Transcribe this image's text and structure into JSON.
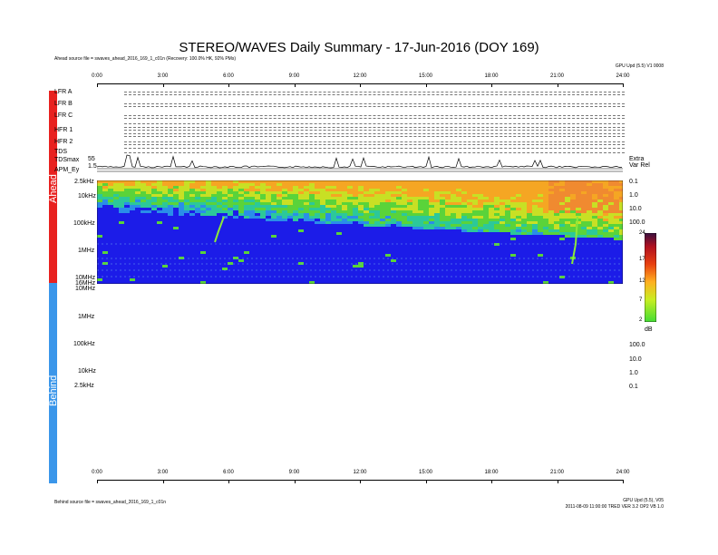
{
  "title": "STEREO/WAVES Daily Summary - 17-Jun-2016 (DOY 169)",
  "ahead_source": "Ahead source file = swaves_ahead_2016_169_1_c01n (Recovery: 100.0% HK, 92% PMs)",
  "behind_source": "Behind source file = swaves_ahead_2016_169_1_c01n",
  "top_right_note": "GPU Upd (5.5) V1 0008",
  "bottom_right_note": "GPU Upd (5.5), V05",
  "bottom_right_note2": "2011-08-09 11:00:00 TRED VER 3.2 OP2 VB 1.0",
  "ahead_label": "Ahead",
  "behind_label": "Behind",
  "row_labels": [
    "LFR A",
    "LFR B",
    "LFR C",
    "HFR 1",
    "HFR 2",
    "TDS",
    "TDSmax",
    "APM_Ey"
  ],
  "tds_right": [
    "Extra",
    "Var Rel"
  ],
  "tdsmax_value": "55",
  "apm_value": "1.5",
  "colors": {
    "ahead_band": "#e8211f",
    "behind_band": "#3a96ea",
    "spectrogram_base": "#1c1ce8"
  },
  "chart_data": {
    "type": "heatmap",
    "xlabel": "",
    "x_ticks": [
      "0:00",
      "3:00",
      "6:00",
      "9:00",
      "12:00",
      "15:00",
      "18:00",
      "21:00",
      "24:00"
    ],
    "y_ticks_ahead": [
      "2.5kHz",
      "10kHz",
      "100kHz",
      "1MHz",
      "10MHz",
      "16MHz"
    ],
    "y_ticks_behind": [
      "10MHz",
      "1MHz",
      "100kHz",
      "10kHz",
      "2.5kHz"
    ],
    "right_ticks_ahead": [
      "0.1",
      "1.0",
      "10.0",
      "100.0"
    ],
    "right_ticks_behind": [
      "100.0",
      "10.0",
      "1.0",
      "0.1"
    ],
    "colorbar": {
      "ticks": [
        "24",
        "17",
        "12",
        "7",
        "2"
      ],
      "unit": "dB",
      "range": [
        2,
        24
      ]
    }
  }
}
